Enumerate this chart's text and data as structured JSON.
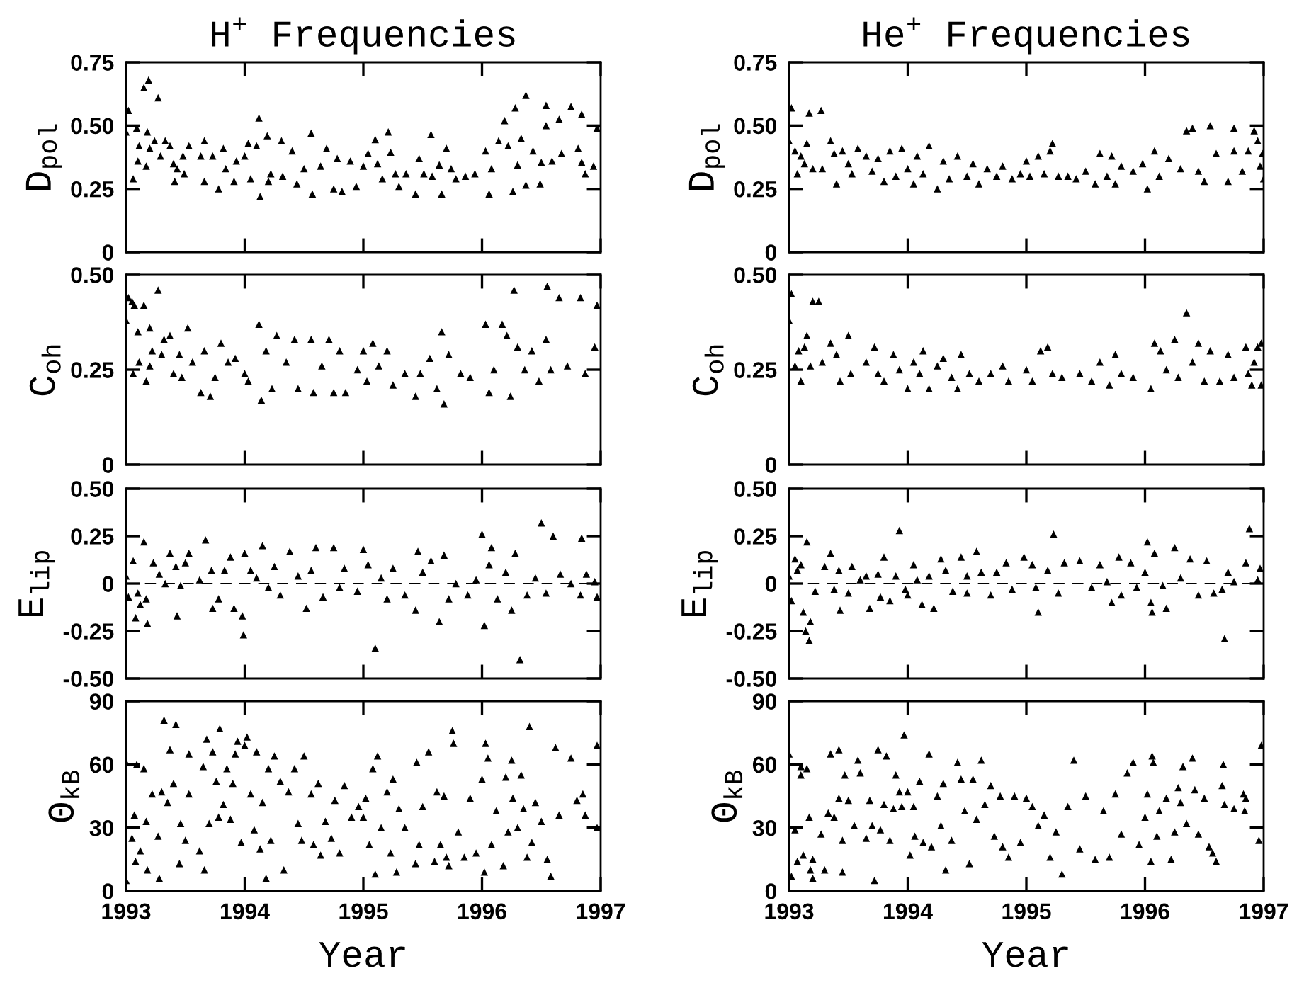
{
  "chart_data": [
    {
      "type": "scatter",
      "title": "H$^{+}$ Frequencies",
      "ylabel": "D$_{pol}$",
      "color": "#000000",
      "marker": "triangle",
      "tick_labels": "y",
      "xlim": [
        1993,
        1997
      ],
      "xticks": [
        1993,
        1994,
        1995,
        1996,
        1997
      ],
      "ylim": [
        0,
        0.75
      ],
      "yticks": [
        0,
        0.25,
        {
          "value": 0.5,
          "label": "0.50"
        },
        0.75
      ],
      "x": [
        1993.02,
        1993.0,
        1993.09,
        1993.06,
        1993.11,
        1993.1,
        1993.15,
        1993.19,
        1993.18,
        1993.17,
        1993.2,
        1993.24,
        1993.27,
        1993.29,
        1993.33,
        1993.37,
        1993.4,
        1993.41,
        1993.43,
        1993.48,
        1993.53,
        1993.49,
        1993.63,
        1993.66,
        1993.66,
        1993.73,
        1993.78,
        1993.82,
        1993.84,
        1993.91,
        1993.93,
        1994.0,
        1994.03,
        1994.05,
        1994.1,
        1994.12,
        1994.13,
        1994.19,
        1994.2,
        1994.22,
        1994.31,
        1994.32,
        1994.4,
        1994.44,
        1994.5,
        1994.56,
        1994.57,
        1994.64,
        1994.69,
        1994.75,
        1994.78,
        1994.82,
        1994.89,
        1994.94,
        1995.0,
        1995.04,
        1995.1,
        1995.12,
        1995.16,
        1995.21,
        1995.23,
        1995.27,
        1995.3,
        1995.36,
        1995.44,
        1995.47,
        1995.51,
        1995.57,
        1995.58,
        1995.64,
        1995.66,
        1995.7,
        1995.74,
        1995.78,
        1995.86,
        1995.94,
        1996.03,
        1996.06,
        1996.08,
        1996.14,
        1996.19,
        1996.22,
        1996.26,
        1996.28,
        1996.3,
        1996.33,
        1996.37,
        1996.37,
        1996.43,
        1996.49,
        1996.5,
        1996.54,
        1996.54,
        1996.59,
        1996.65,
        1996.67,
        1996.75,
        1996.81,
        1996.84,
        1996.84,
        1996.87,
        1996.94,
        1996.97
      ],
      "values": [
        0.56,
        0.475,
        0.49,
        0.29,
        0.42,
        0.36,
        0.65,
        0.68,
        0.475,
        0.34,
        0.41,
        0.44,
        0.61,
        0.38,
        0.44,
        0.42,
        0.35,
        0.28,
        0.33,
        0.38,
        0.42,
        0.31,
        0.38,
        0.44,
        0.28,
        0.38,
        0.25,
        0.41,
        0.33,
        0.28,
        0.36,
        0.38,
        0.43,
        0.29,
        0.42,
        0.53,
        0.22,
        0.46,
        0.28,
        0.31,
        0.44,
        0.3,
        0.4,
        0.27,
        0.33,
        0.47,
        0.23,
        0.34,
        0.41,
        0.25,
        0.37,
        0.24,
        0.36,
        0.26,
        0.34,
        0.39,
        0.445,
        0.35,
        0.29,
        0.475,
        0.395,
        0.31,
        0.26,
        0.31,
        0.23,
        0.37,
        0.31,
        0.465,
        0.3,
        0.345,
        0.23,
        0.41,
        0.33,
        0.29,
        0.3,
        0.31,
        0.4,
        0.23,
        0.33,
        0.44,
        0.52,
        0.42,
        0.24,
        0.57,
        0.345,
        0.45,
        0.62,
        0.265,
        0.4,
        0.27,
        0.355,
        0.5,
        0.58,
        0.36,
        0.525,
        0.39,
        0.575,
        0.41,
        0.355,
        0.545,
        0.31,
        0.34,
        0.49
      ]
    },
    {
      "type": "scatter",
      "title": "He$^{+}$ Frequencies",
      "ylabel": "D$_{pol}$",
      "color": "#000000",
      "marker": "triangle",
      "tick_labels": "y",
      "xlim": [
        1993,
        1997
      ],
      "xticks": [
        1993,
        1994,
        1995,
        1996,
        1997
      ],
      "ylim": [
        0,
        0.75
      ],
      "yticks": [
        0,
        0.25,
        {
          "value": 0.5,
          "label": "0.50"
        },
        0.75
      ],
      "x": [
        1993.0,
        1993.02,
        1993.05,
        1993.07,
        1993.1,
        1993.13,
        1993.15,
        1993.17,
        1993.2,
        1993.27,
        1993.28,
        1993.35,
        1993.38,
        1993.4,
        1993.45,
        1993.5,
        1993.53,
        1993.58,
        1993.65,
        1993.7,
        1993.75,
        1993.8,
        1993.85,
        1993.9,
        1993.95,
        1994.0,
        1994.05,
        1994.08,
        1994.13,
        1994.18,
        1994.25,
        1994.3,
        1994.35,
        1994.42,
        1994.5,
        1994.55,
        1994.6,
        1994.67,
        1994.75,
        1994.8,
        1994.88,
        1994.95,
        1995.0,
        1995.03,
        1995.1,
        1995.15,
        1995.2,
        1995.22,
        1995.27,
        1995.35,
        1995.42,
        1995.5,
        1995.58,
        1995.62,
        1995.68,
        1995.72,
        1995.75,
        1995.8,
        1995.9,
        1995.98,
        1996.02,
        1996.08,
        1996.12,
        1996.2,
        1996.3,
        1996.35,
        1996.4,
        1996.45,
        1996.5,
        1996.55,
        1996.6,
        1996.7,
        1996.75,
        1996.75,
        1996.82,
        1996.87,
        1996.92,
        1996.97,
        1997.0,
        1996.95,
        1996.99
      ],
      "values": [
        0.44,
        0.57,
        0.4,
        0.31,
        0.38,
        0.35,
        0.43,
        0.55,
        0.33,
        0.56,
        0.33,
        0.44,
        0.39,
        0.27,
        0.4,
        0.35,
        0.31,
        0.41,
        0.38,
        0.32,
        0.37,
        0.28,
        0.4,
        0.3,
        0.41,
        0.33,
        0.27,
        0.38,
        0.31,
        0.42,
        0.25,
        0.36,
        0.29,
        0.38,
        0.3,
        0.35,
        0.27,
        0.33,
        0.3,
        0.34,
        0.29,
        0.31,
        0.36,
        0.3,
        0.38,
        0.31,
        0.4,
        0.43,
        0.3,
        0.3,
        0.29,
        0.32,
        0.27,
        0.39,
        0.3,
        0.38,
        0.27,
        0.34,
        0.32,
        0.35,
        0.25,
        0.4,
        0.3,
        0.37,
        0.33,
        0.48,
        0.49,
        0.32,
        0.28,
        0.5,
        0.39,
        0.28,
        0.49,
        0.4,
        0.32,
        0.4,
        0.48,
        0.34,
        0.29,
        0.44,
        0.39
      ]
    },
    {
      "type": "scatter",
      "ylabel": "C$_{oh}$",
      "color": "#000000",
      "marker": "triangle",
      "tick_labels": "y",
      "xlim": [
        1993,
        1997
      ],
      "xticks": [
        1993,
        1994,
        1995,
        1996,
        1997
      ],
      "ylim": [
        0,
        0.5
      ],
      "yticks": [
        0,
        0.25,
        {
          "value": 0.5,
          "label": "0.50"
        }
      ],
      "x": [
        1993.0,
        1993.02,
        1993.05,
        1993.07,
        1993.06,
        1993.1,
        1993.11,
        1993.15,
        1993.17,
        1993.2,
        1993.2,
        1993.22,
        1993.27,
        1993.3,
        1993.32,
        1993.37,
        1993.4,
        1993.45,
        1993.47,
        1993.52,
        1993.56,
        1993.63,
        1993.66,
        1993.71,
        1993.75,
        1993.8,
        1993.86,
        1993.92,
        1994.0,
        1994.03,
        1994.12,
        1994.14,
        1994.18,
        1994.23,
        1994.27,
        1994.35,
        1994.42,
        1994.45,
        1994.56,
        1994.58,
        1994.65,
        1994.71,
        1994.75,
        1994.8,
        1994.85,
        1994.95,
        1995.0,
        1995.03,
        1995.08,
        1995.13,
        1995.2,
        1995.25,
        1995.35,
        1995.44,
        1995.48,
        1995.56,
        1995.62,
        1995.66,
        1995.68,
        1995.72,
        1995.82,
        1995.9,
        1996.03,
        1996.06,
        1996.1,
        1996.17,
        1996.21,
        1996.24,
        1996.27,
        1996.3,
        1996.36,
        1996.42,
        1996.48,
        1996.54,
        1996.55,
        1996.58,
        1996.65,
        1996.72,
        1996.83,
        1996.87,
        1996.95,
        1996.97
      ],
      "values": [
        0.38,
        0.44,
        0.43,
        0.42,
        0.24,
        0.35,
        0.27,
        0.42,
        0.22,
        0.36,
        0.26,
        0.3,
        0.46,
        0.29,
        0.33,
        0.34,
        0.24,
        0.29,
        0.23,
        0.36,
        0.27,
        0.19,
        0.3,
        0.18,
        0.23,
        0.32,
        0.27,
        0.28,
        0.24,
        0.22,
        0.37,
        0.17,
        0.3,
        0.2,
        0.34,
        0.27,
        0.33,
        0.2,
        0.33,
        0.19,
        0.26,
        0.33,
        0.19,
        0.3,
        0.19,
        0.25,
        0.3,
        0.22,
        0.32,
        0.26,
        0.3,
        0.21,
        0.24,
        0.18,
        0.24,
        0.28,
        0.2,
        0.35,
        0.16,
        0.29,
        0.24,
        0.23,
        0.37,
        0.19,
        0.25,
        0.37,
        0.34,
        0.18,
        0.46,
        0.31,
        0.25,
        0.3,
        0.22,
        0.33,
        0.47,
        0.25,
        0.44,
        0.26,
        0.44,
        0.24,
        0.31,
        0.42
      ]
    },
    {
      "type": "scatter",
      "ylabel": "C$_{oh}$",
      "color": "#000000",
      "marker": "triangle",
      "tick_labels": "y",
      "xlim": [
        1993,
        1997
      ],
      "xticks": [
        1993,
        1994,
        1995,
        1996,
        1997
      ],
      "ylim": [
        0,
        0.5
      ],
      "yticks": [
        0,
        0.25,
        {
          "value": 0.5,
          "label": "0.50"
        }
      ],
      "x": [
        1993.0,
        1993.02,
        1993.05,
        1993.08,
        1993.1,
        1993.13,
        1993.15,
        1993.18,
        1993.2,
        1993.25,
        1993.28,
        1993.35,
        1993.4,
        1993.43,
        1993.5,
        1993.52,
        1993.65,
        1993.72,
        1993.75,
        1993.8,
        1993.88,
        1993.93,
        1994.0,
        1994.05,
        1994.1,
        1994.13,
        1994.18,
        1994.25,
        1994.3,
        1994.37,
        1994.42,
        1994.45,
        1994.52,
        1994.6,
        1994.7,
        1994.8,
        1994.85,
        1995.0,
        1995.05,
        1995.12,
        1995.18,
        1995.22,
        1995.3,
        1995.45,
        1995.55,
        1995.62,
        1995.7,
        1995.75,
        1995.8,
        1995.9,
        1996.05,
        1996.08,
        1996.13,
        1996.18,
        1996.25,
        1996.28,
        1996.35,
        1996.4,
        1996.45,
        1996.5,
        1996.55,
        1996.63,
        1996.7,
        1996.75,
        1996.85,
        1996.9,
        1996.95,
        1996.98,
        1996.98,
        1996.87,
        1996.92
      ],
      "values": [
        0.38,
        0.45,
        0.26,
        0.3,
        0.22,
        0.31,
        0.34,
        0.26,
        0.43,
        0.43,
        0.27,
        0.32,
        0.29,
        0.22,
        0.34,
        0.24,
        0.27,
        0.31,
        0.24,
        0.22,
        0.29,
        0.25,
        0.2,
        0.27,
        0.24,
        0.3,
        0.2,
        0.26,
        0.28,
        0.23,
        0.2,
        0.29,
        0.24,
        0.22,
        0.24,
        0.26,
        0.22,
        0.25,
        0.22,
        0.3,
        0.31,
        0.24,
        0.23,
        0.24,
        0.22,
        0.27,
        0.21,
        0.29,
        0.24,
        0.23,
        0.2,
        0.32,
        0.3,
        0.25,
        0.33,
        0.23,
        0.4,
        0.27,
        0.32,
        0.22,
        0.3,
        0.22,
        0.29,
        0.23,
        0.31,
        0.21,
        0.31,
        0.21,
        0.32,
        0.24,
        0.27
      ]
    },
    {
      "type": "scatter",
      "ylabel": "E$_{lip}$",
      "color": "#000000",
      "marker": "triangle",
      "tick_labels": "y",
      "xlim": [
        1993,
        1997
      ],
      "xticks": [
        1993,
        1994,
        1995,
        1996,
        1997
      ],
      "ylim": [
        -0.5,
        0.5
      ],
      "yticks": [
        {
          "value": -0.5,
          "label": "-0.50"
        },
        {
          "value": -0.25,
          "label": "-0.25"
        },
        0,
        0.25,
        {
          "value": 0.5,
          "label": "0.50"
        }
      ],
      "ref_lines": [
        {
          "axis": "y",
          "value": 0,
          "color": "#000000",
          "line_style": "dashed"
        }
      ],
      "x": [
        1993.0,
        1993.02,
        1993.06,
        1993.08,
        1993.1,
        1993.12,
        1993.15,
        1993.17,
        1993.18,
        1993.23,
        1993.28,
        1993.33,
        1993.37,
        1993.42,
        1993.43,
        1993.46,
        1993.5,
        1993.53,
        1993.62,
        1993.67,
        1993.72,
        1993.73,
        1993.78,
        1993.83,
        1993.88,
        1993.91,
        1993.98,
        1993.99,
        1994.0,
        1994.05,
        1994.1,
        1994.15,
        1994.2,
        1994.25,
        1994.3,
        1994.38,
        1994.45,
        1994.52,
        1994.56,
        1994.6,
        1994.66,
        1994.75,
        1994.8,
        1994.84,
        1994.95,
        1995.0,
        1995.04,
        1995.1,
        1995.15,
        1995.2,
        1995.25,
        1995.35,
        1995.44,
        1995.46,
        1995.5,
        1995.57,
        1995.64,
        1995.68,
        1995.72,
        1995.78,
        1995.88,
        1995.95,
        1996.0,
        1996.02,
        1996.06,
        1996.08,
        1996.13,
        1996.2,
        1996.25,
        1996.28,
        1996.32,
        1996.38,
        1996.45,
        1996.5,
        1996.54,
        1996.6,
        1996.66,
        1996.75,
        1996.83,
        1996.84,
        1996.88,
        1996.95,
        1996.97
      ],
      "values": [
        0.04,
        -0.07,
        0.12,
        -0.18,
        -0.05,
        -0.11,
        0.22,
        -0.08,
        -0.21,
        0.11,
        0.05,
        0.0,
        0.16,
        0.09,
        -0.17,
        -0.01,
        0.11,
        0.16,
        0.02,
        0.23,
        0.07,
        -0.13,
        -0.08,
        0.07,
        0.14,
        -0.13,
        -0.17,
        -0.27,
        0.16,
        0.07,
        0.03,
        0.2,
        -0.02,
        0.09,
        -0.06,
        0.17,
        0.04,
        -0.13,
        0.07,
        0.19,
        -0.07,
        0.19,
        -0.02,
        0.08,
        -0.04,
        0.18,
        0.1,
        -0.34,
        0.03,
        -0.08,
        0.08,
        -0.06,
        -0.14,
        0.17,
        0.06,
        0.12,
        -0.2,
        0.15,
        -0.08,
        0.0,
        -0.06,
        0.02,
        0.26,
        -0.22,
        0.1,
        0.19,
        -0.08,
        0.06,
        -0.14,
        0.16,
        -0.4,
        -0.06,
        0.03,
        0.32,
        -0.05,
        0.25,
        0.05,
        0.0,
        -0.06,
        0.24,
        0.05,
        0.01,
        -0.07
      ]
    },
    {
      "type": "scatter",
      "ylabel": "E$_{lip}$",
      "color": "#000000",
      "marker": "triangle",
      "tick_labels": "y",
      "xlim": [
        1993,
        1997
      ],
      "xticks": [
        1993,
        1994,
        1995,
        1996,
        1997
      ],
      "ylim": [
        -0.5,
        0.5
      ],
      "yticks": [
        {
          "value": -0.5,
          "label": "-0.50"
        },
        {
          "value": -0.25,
          "label": "-0.25"
        },
        0,
        0.25,
        {
          "value": 0.5,
          "label": "0.50"
        }
      ],
      "ref_lines": [
        {
          "axis": "y",
          "value": 0,
          "color": "#000000",
          "line_style": "dashed"
        }
      ],
      "x": [
        1993.0,
        1993.02,
        1993.05,
        1993.07,
        1993.1,
        1993.12,
        1993.14,
        1993.15,
        1993.17,
        1993.18,
        1993.22,
        1993.3,
        1993.35,
        1993.38,
        1993.42,
        1993.43,
        1993.5,
        1993.53,
        1993.6,
        1993.65,
        1993.68,
        1993.75,
        1993.77,
        1993.8,
        1993.85,
        1993.9,
        1993.93,
        1993.98,
        1994.0,
        1994.05,
        1994.08,
        1994.12,
        1994.18,
        1994.22,
        1994.28,
        1994.32,
        1994.38,
        1994.45,
        1994.5,
        1994.5,
        1994.58,
        1994.62,
        1994.7,
        1994.75,
        1994.83,
        1994.88,
        1994.98,
        1995.05,
        1995.08,
        1995.1,
        1995.18,
        1995.23,
        1995.27,
        1995.32,
        1995.45,
        1995.55,
        1995.62,
        1995.68,
        1995.72,
        1995.78,
        1995.8,
        1995.88,
        1995.93,
        1996.0,
        1996.02,
        1996.05,
        1996.06,
        1996.08,
        1996.15,
        1996.18,
        1996.25,
        1996.3,
        1996.38,
        1996.45,
        1996.52,
        1996.58,
        1996.65,
        1996.67,
        1996.7,
        1996.75,
        1996.85,
        1996.88,
        1996.97,
        1996.95
      ],
      "values": [
        0.04,
        -0.09,
        0.13,
        0.07,
        0.1,
        -0.15,
        -0.25,
        0.22,
        -0.3,
        -0.2,
        -0.04,
        0.09,
        0.16,
        -0.03,
        0.07,
        -0.14,
        -0.05,
        0.09,
        0.02,
        0.04,
        -0.13,
        0.05,
        -0.07,
        0.14,
        -0.09,
        0.04,
        0.28,
        -0.03,
        -0.06,
        0.1,
        0.02,
        -0.11,
        0.04,
        -0.13,
        0.13,
        0.07,
        -0.04,
        0.14,
        0.04,
        -0.05,
        0.17,
        0.06,
        -0.06,
        0.06,
        0.11,
        -0.03,
        0.14,
        0.1,
        -0.02,
        -0.15,
        0.07,
        0.26,
        -0.05,
        0.11,
        0.12,
        -0.02,
        0.1,
        0.01,
        -0.1,
        0.14,
        -0.06,
        0.11,
        -0.02,
        0.06,
        0.22,
        -0.1,
        -0.15,
        0.16,
        -0.01,
        -0.13,
        0.19,
        0.03,
        0.13,
        -0.06,
        0.12,
        -0.05,
        -0.03,
        -0.29,
        0.06,
        0.01,
        0.11,
        0.29,
        0.08,
        0.02
      ]
    },
    {
      "type": "scatter",
      "ylabel": "Θ$_{kB}$",
      "xlabel": "Year",
      "color": "#000000",
      "marker": "triangle",
      "xlim": [
        1993,
        1997
      ],
      "xticks": [
        1993,
        1994,
        1995,
        1996,
        1997
      ],
      "ylim": [
        0,
        90
      ],
      "yticks": [
        0,
        30,
        60,
        90
      ],
      "x": [
        1993.0,
        1993.0,
        1993.05,
        1993.07,
        1993.08,
        1993.09,
        1993.12,
        1993.15,
        1993.17,
        1993.18,
        1993.22,
        1993.27,
        1993.28,
        1993.3,
        1993.32,
        1993.35,
        1993.37,
        1993.4,
        1993.42,
        1993.45,
        1993.46,
        1993.5,
        1993.53,
        1993.53,
        1993.62,
        1993.65,
        1993.66,
        1993.68,
        1993.7,
        1993.73,
        1993.76,
        1993.78,
        1993.79,
        1993.82,
        1993.85,
        1993.88,
        1993.9,
        1993.92,
        1993.94,
        1993.97,
        1994.0,
        1994.02,
        1994.05,
        1994.08,
        1994.1,
        1994.13,
        1994.15,
        1994.18,
        1994.2,
        1994.22,
        1994.25,
        1994.3,
        1994.33,
        1994.37,
        1994.42,
        1994.45,
        1994.48,
        1994.5,
        1994.56,
        1994.58,
        1994.62,
        1994.64,
        1994.68,
        1994.73,
        1994.76,
        1994.8,
        1994.84,
        1994.9,
        1994.96,
        1995.0,
        1995.02,
        1995.05,
        1995.08,
        1995.1,
        1995.12,
        1995.15,
        1995.2,
        1995.23,
        1995.25,
        1995.28,
        1995.3,
        1995.35,
        1995.44,
        1995.45,
        1995.47,
        1995.5,
        1995.55,
        1995.6,
        1995.62,
        1995.65,
        1995.68,
        1995.7,
        1995.72,
        1995.75,
        1995.76,
        1995.8,
        1995.85,
        1995.9,
        1995.95,
        1996.0,
        1996.02,
        1996.03,
        1996.05,
        1996.08,
        1996.12,
        1996.18,
        1996.2,
        1996.22,
        1996.25,
        1996.26,
        1996.3,
        1996.33,
        1996.35,
        1996.38,
        1996.4,
        1996.42,
        1996.45,
        1996.5,
        1996.55,
        1996.58,
        1996.62,
        1996.65,
        1996.75,
        1996.8,
        1996.85,
        1996.87,
        1996.97,
        1996.97
      ],
      "values": [
        5,
        61,
        25,
        36,
        14,
        60,
        19,
        58,
        33,
        10,
        46,
        26,
        6,
        47,
        81,
        42,
        67,
        51,
        79,
        13,
        32,
        24,
        65,
        46,
        19,
        59,
        10,
        72,
        32,
        66,
        52,
        35,
        77,
        41,
        58,
        34,
        51,
        65,
        71,
        23,
        69,
        73,
        46,
        29,
        66,
        20,
        42,
        6,
        58,
        24,
        64,
        52,
        10,
        47,
        58,
        32,
        24,
        64,
        46,
        22,
        51,
        17,
        33,
        25,
        43,
        18,
        50,
        35,
        40,
        35,
        44,
        22,
        58,
        8,
        64,
        30,
        47,
        18,
        53,
        9,
        39,
        30,
        13,
        61,
        22,
        40,
        66,
        14,
        47,
        22,
        45,
        16,
        12,
        76,
        70,
        28,
        16,
        44,
        18,
        53,
        9,
        70,
        63,
        22,
        38,
        12,
        54,
        28,
        62,
        44,
        30,
        55,
        39,
        16,
        78,
        23,
        42,
        33,
        15,
        7,
        68,
        36,
        63,
        43,
        46,
        36,
        69,
        30
      ]
    },
    {
      "type": "scatter",
      "ylabel": "Θ$_{kB}$",
      "xlabel": "Year",
      "color": "#000000",
      "marker": "triangle",
      "xlim": [
        1993,
        1997
      ],
      "xticks": [
        1993,
        1994,
        1995,
        1996,
        1997
      ],
      "ylim": [
        0,
        90
      ],
      "yticks": [
        0,
        30,
        60,
        90
      ],
      "x": [
        1993.0,
        1993.02,
        1993.05,
        1993.07,
        1993.1,
        1993.1,
        1993.12,
        1993.15,
        1993.17,
        1993.18,
        1993.2,
        1993.2,
        1993.27,
        1993.3,
        1993.33,
        1993.35,
        1993.38,
        1993.42,
        1993.42,
        1993.45,
        1993.47,
        1993.45,
        1993.5,
        1993.55,
        1993.58,
        1993.6,
        1993.65,
        1993.68,
        1993.72,
        1993.7,
        1993.75,
        1993.77,
        1993.8,
        1993.82,
        1993.85,
        1993.88,
        1993.9,
        1993.93,
        1993.95,
        1993.97,
        1994.0,
        1994.02,
        1994.05,
        1994.06,
        1994.1,
        1994.13,
        1994.18,
        1994.2,
        1994.25,
        1994.28,
        1994.3,
        1994.32,
        1994.37,
        1994.42,
        1994.45,
        1994.48,
        1994.52,
        1994.55,
        1994.58,
        1994.62,
        1994.65,
        1994.7,
        1994.73,
        1994.78,
        1994.8,
        1994.85,
        1994.9,
        1994.95,
        1995.0,
        1995.05,
        1995.1,
        1995.15,
        1995.2,
        1995.25,
        1995.3,
        1995.35,
        1995.4,
        1995.45,
        1995.5,
        1995.58,
        1995.65,
        1995.7,
        1995.75,
        1995.8,
        1995.85,
        1995.9,
        1995.95,
        1996.0,
        1996.02,
        1996.05,
        1996.06,
        1996.07,
        1996.1,
        1996.12,
        1996.18,
        1996.22,
        1996.25,
        1996.28,
        1996.3,
        1996.32,
        1996.35,
        1996.4,
        1996.42,
        1996.45,
        1996.5,
        1996.54,
        1996.57,
        1996.6,
        1996.65,
        1996.66,
        1996.67,
        1996.75,
        1996.83,
        1996.85,
        1996.84,
        1996.96,
        1996.98
      ],
      "values": [
        65,
        7,
        29,
        14,
        59,
        55,
        17,
        58,
        35,
        10,
        15,
        6,
        27,
        10,
        37,
        65,
        35,
        67,
        44,
        24,
        55,
        9,
        43,
        31,
        62,
        56,
        25,
        43,
        5,
        31,
        67,
        29,
        41,
        64,
        24,
        39,
        55,
        47,
        40,
        74,
        47,
        17,
        40,
        26,
        52,
        23,
        65,
        21,
        45,
        31,
        51,
        10,
        24,
        61,
        53,
        38,
        13,
        53,
        34,
        62,
        41,
        50,
        26,
        45,
        21,
        16,
        45,
        23,
        44,
        40,
        31,
        36,
        16,
        28,
        8,
        40,
        62,
        20,
        45,
        15,
        38,
        16,
        46,
        27,
        56,
        61,
        22,
        35,
        46,
        14,
        64,
        61,
        26,
        38,
        44,
        15,
        28,
        49,
        42,
        59,
        32,
        63,
        48,
        27,
        44,
        21,
        18,
        14,
        50,
        60,
        41,
        39,
        46,
        44,
        38,
        24,
        69
      ]
    }
  ]
}
